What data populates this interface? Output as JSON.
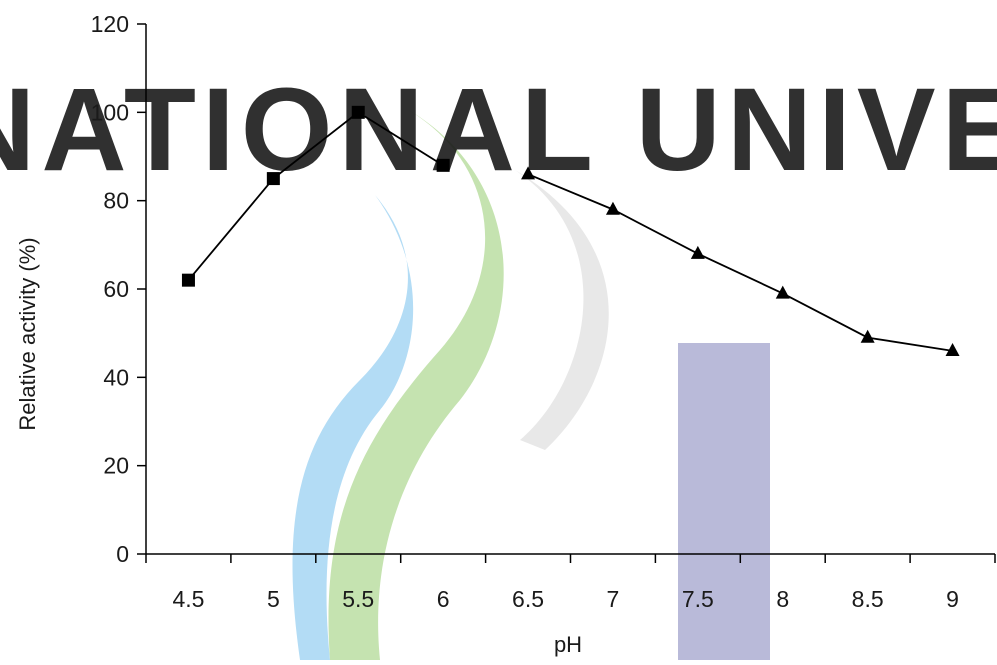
{
  "watermark": {
    "text": "JEJU NATIONAL UNIVERSITY",
    "colors": {
      "text": "#e6e6e6",
      "blue": "#b3dcf5",
      "green": "#c5e3b0",
      "gray": "#e8e8e8",
      "navy": "#b9bad9"
    }
  },
  "chart_data": {
    "type": "line",
    "title": "",
    "xlabel": "pH",
    "ylabel": "Relative activity (%)",
    "x_ticks": [
      "4.5",
      "5",
      "5.5",
      "6",
      "6.5",
      "7",
      "7.5",
      "8",
      "8.5",
      "9"
    ],
    "y_ticks": [
      "0",
      "20",
      "40",
      "60",
      "80",
      "100",
      "120"
    ],
    "xlim": [
      4.25,
      9.25
    ],
    "ylim": [
      0,
      120
    ],
    "grid": false,
    "legend": "none",
    "series": [
      {
        "marker": "square",
        "color": "#000000",
        "x": [
          4.5,
          5.0,
          5.5,
          6.0
        ],
        "y": [
          62,
          85,
          100,
          88
        ]
      },
      {
        "marker": "triangle",
        "color": "#000000",
        "x": [
          6.5,
          7.0,
          7.5,
          8.0,
          8.5,
          9.0
        ],
        "y": [
          86,
          78,
          68,
          59,
          49,
          46
        ]
      }
    ]
  }
}
